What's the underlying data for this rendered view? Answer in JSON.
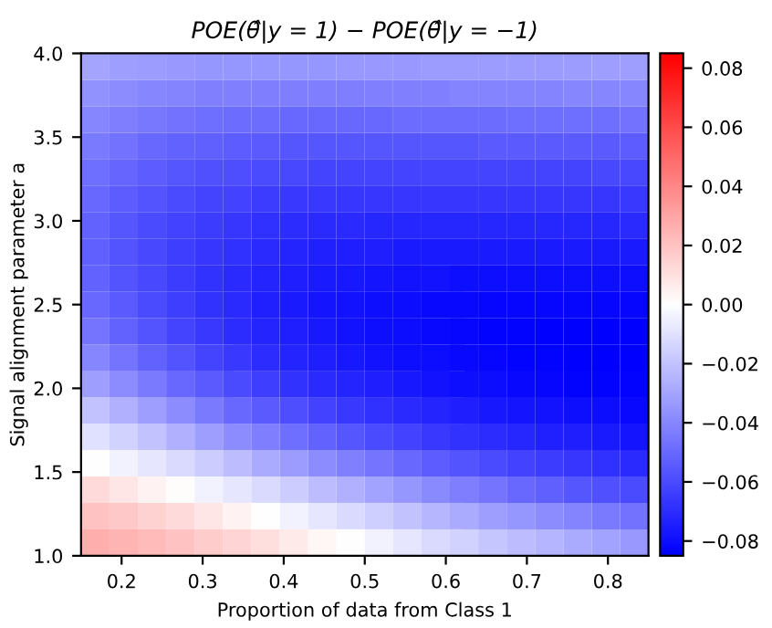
{
  "chart_data": {
    "type": "heatmap",
    "title": "POE(θ̂|y = 1) − POE(θ̂|y = −1)",
    "xlabel": "Proportion of data from Class 1",
    "ylabel": "Signal alignment parameter a",
    "xlim": [
      0.15,
      0.85
    ],
    "ylim": [
      1.0,
      4.0
    ],
    "xticks": [
      0.2,
      0.3,
      0.4,
      0.5,
      0.6,
      0.7,
      0.8
    ],
    "yticks": [
      {
        "value": 1,
        "label": "1.0"
      },
      1.5,
      {
        "value": 2,
        "label": "2.0"
      },
      2.5,
      {
        "value": 3,
        "label": "3.0"
      },
      3.5,
      {
        "value": 4,
        "label": "4.0"
      }
    ],
    "clim": [
      -0.085,
      0.085
    ],
    "cticks": [
      {
        "value": -0.08,
        "label": "−0.08"
      },
      {
        "value": -0.06,
        "label": "−0.06"
      },
      {
        "value": -0.04,
        "label": "−0.04"
      },
      {
        "value": -0.02,
        "label": "−0.02"
      },
      {
        "value": 0.0,
        "label": "0.00"
      },
      {
        "value": 0.02,
        "label": "0.02"
      },
      {
        "value": 0.04,
        "label": "0.04"
      },
      {
        "value": 0.06,
        "label": "0.06"
      },
      {
        "value": 0.08,
        "label": "0.08"
      }
    ],
    "cells": [
      [
        -0.03,
        -0.032,
        -0.033,
        -0.034,
        -0.035,
        -0.035,
        -0.035,
        -0.035,
        -0.035,
        -0.034,
        -0.034,
        -0.034,
        -0.033,
        -0.033,
        -0.033,
        -0.033,
        -0.033,
        -0.033,
        -0.032,
        -0.032
      ],
      [
        -0.036,
        -0.038,
        -0.04,
        -0.041,
        -0.042,
        -0.042,
        -0.043,
        -0.043,
        -0.043,
        -0.043,
        -0.042,
        -0.042,
        -0.042,
        -0.041,
        -0.041,
        -0.041,
        -0.041,
        -0.04,
        -0.04,
        -0.04
      ],
      [
        -0.04,
        -0.043,
        -0.045,
        -0.047,
        -0.048,
        -0.049,
        -0.049,
        -0.05,
        -0.05,
        -0.05,
        -0.05,
        -0.049,
        -0.049,
        -0.049,
        -0.049,
        -0.048,
        -0.048,
        -0.048,
        -0.048,
        -0.047
      ],
      [
        -0.044,
        -0.047,
        -0.05,
        -0.052,
        -0.053,
        -0.054,
        -0.055,
        -0.056,
        -0.056,
        -0.056,
        -0.056,
        -0.056,
        -0.056,
        -0.056,
        -0.055,
        -0.055,
        -0.055,
        -0.055,
        -0.055,
        -0.054
      ],
      [
        -0.048,
        -0.051,
        -0.054,
        -0.056,
        -0.058,
        -0.059,
        -0.06,
        -0.061,
        -0.062,
        -0.062,
        -0.062,
        -0.062,
        -0.062,
        -0.062,
        -0.062,
        -0.062,
        -0.062,
        -0.062,
        -0.061,
        -0.061
      ],
      [
        -0.05,
        -0.054,
        -0.057,
        -0.06,
        -0.062,
        -0.063,
        -0.065,
        -0.066,
        -0.066,
        -0.067,
        -0.067,
        -0.067,
        -0.067,
        -0.067,
        -0.067,
        -0.067,
        -0.067,
        -0.067,
        -0.067,
        -0.066
      ],
      [
        -0.052,
        -0.056,
        -0.06,
        -0.063,
        -0.065,
        -0.067,
        -0.069,
        -0.07,
        -0.071,
        -0.071,
        -0.072,
        -0.072,
        -0.072,
        -0.072,
        -0.072,
        -0.072,
        -0.072,
        -0.072,
        -0.072,
        -0.071
      ],
      [
        -0.053,
        -0.057,
        -0.061,
        -0.064,
        -0.067,
        -0.069,
        -0.071,
        -0.073,
        -0.074,
        -0.075,
        -0.075,
        -0.076,
        -0.076,
        -0.076,
        -0.076,
        -0.076,
        -0.076,
        -0.076,
        -0.076,
        -0.076
      ],
      [
        -0.052,
        -0.057,
        -0.061,
        -0.065,
        -0.068,
        -0.071,
        -0.073,
        -0.075,
        -0.076,
        -0.077,
        -0.078,
        -0.079,
        -0.079,
        -0.08,
        -0.08,
        -0.08,
        -0.08,
        -0.08,
        -0.08,
        -0.08
      ],
      [
        -0.05,
        -0.055,
        -0.06,
        -0.064,
        -0.068,
        -0.071,
        -0.074,
        -0.076,
        -0.078,
        -0.079,
        -0.08,
        -0.081,
        -0.082,
        -0.082,
        -0.083,
        -0.083,
        -0.083,
        -0.083,
        -0.083,
        -0.083
      ],
      [
        -0.046,
        -0.052,
        -0.057,
        -0.062,
        -0.066,
        -0.07,
        -0.073,
        -0.075,
        -0.077,
        -0.079,
        -0.08,
        -0.081,
        -0.082,
        -0.083,
        -0.084,
        -0.084,
        -0.085,
        -0.085,
        -0.085,
        -0.085
      ],
      [
        -0.04,
        -0.046,
        -0.052,
        -0.057,
        -0.062,
        -0.066,
        -0.07,
        -0.073,
        -0.075,
        -0.077,
        -0.079,
        -0.08,
        -0.081,
        -0.082,
        -0.083,
        -0.084,
        -0.084,
        -0.085,
        -0.085,
        -0.085
      ],
      [
        -0.032,
        -0.038,
        -0.044,
        -0.05,
        -0.055,
        -0.06,
        -0.064,
        -0.068,
        -0.071,
        -0.073,
        -0.075,
        -0.077,
        -0.079,
        -0.08,
        -0.081,
        -0.082,
        -0.083,
        -0.084,
        -0.084,
        -0.084
      ],
      [
        -0.02,
        -0.026,
        -0.032,
        -0.038,
        -0.044,
        -0.05,
        -0.055,
        -0.059,
        -0.063,
        -0.066,
        -0.069,
        -0.071,
        -0.073,
        -0.075,
        -0.077,
        -0.078,
        -0.079,
        -0.08,
        -0.081,
        -0.082
      ],
      [
        -0.01,
        -0.015,
        -0.02,
        -0.026,
        -0.032,
        -0.038,
        -0.043,
        -0.048,
        -0.052,
        -0.056,
        -0.06,
        -0.063,
        -0.066,
        -0.068,
        -0.07,
        -0.072,
        -0.074,
        -0.075,
        -0.076,
        -0.078
      ],
      [
        0.0,
        -0.004,
        -0.008,
        -0.012,
        -0.017,
        -0.022,
        -0.028,
        -0.033,
        -0.038,
        -0.042,
        -0.046,
        -0.05,
        -0.054,
        -0.057,
        -0.06,
        -0.063,
        -0.065,
        -0.067,
        -0.069,
        -0.071
      ],
      [
        0.012,
        0.008,
        0.004,
        0.001,
        -0.004,
        -0.008,
        -0.012,
        -0.017,
        -0.022,
        -0.026,
        -0.031,
        -0.035,
        -0.039,
        -0.043,
        -0.046,
        -0.05,
        -0.053,
        -0.056,
        -0.058,
        -0.06
      ],
      [
        0.02,
        0.018,
        0.015,
        0.012,
        0.008,
        0.004,
        0.0,
        -0.004,
        -0.008,
        -0.012,
        -0.016,
        -0.02,
        -0.024,
        -0.028,
        -0.032,
        -0.035,
        -0.038,
        -0.041,
        -0.044,
        -0.047
      ],
      [
        0.027,
        0.025,
        0.023,
        0.02,
        0.017,
        0.014,
        0.011,
        0.007,
        0.003,
        0.0,
        -0.004,
        -0.008,
        -0.012,
        -0.015,
        -0.019,
        -0.022,
        -0.025,
        -0.028,
        -0.031,
        -0.034
      ]
    ]
  }
}
